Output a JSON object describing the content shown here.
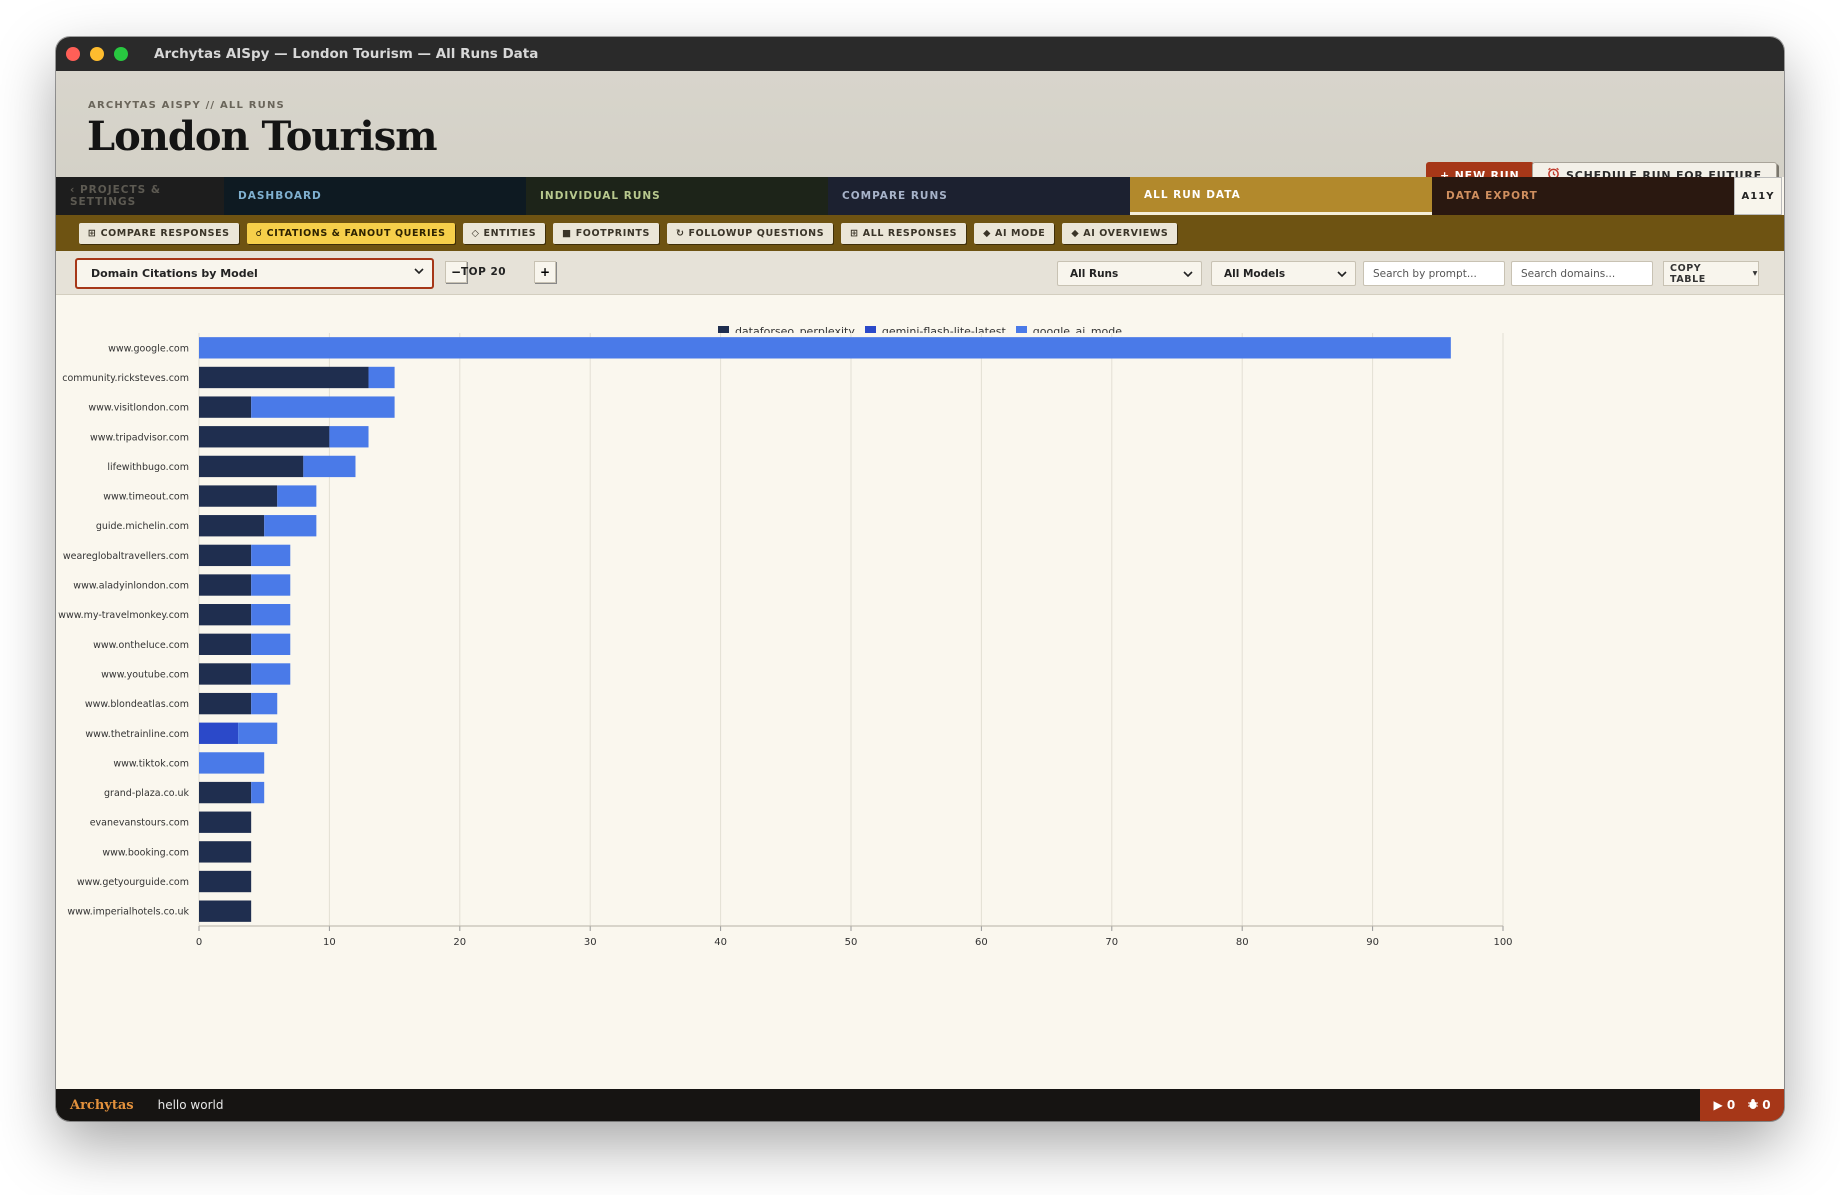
{
  "window": {
    "title": "Archytas AISpy — London Tourism — All Runs Data"
  },
  "header": {
    "breadcrumb": "ARCHYTAS AISPY // ALL RUNS",
    "title": "London Tourism",
    "new_run_label": "+ NEW RUN",
    "schedule_label": "SCHEDULE RUN FOR FUTURE",
    "schedule_icon": "alarm-clock-icon"
  },
  "tabs": [
    {
      "label": "‹ PROJECTS & SETTINGS"
    },
    {
      "label": "DASHBOARD"
    },
    {
      "label": "INDIVIDUAL RUNS"
    },
    {
      "label": "COMPARE RUNS"
    },
    {
      "label": "ALL RUN DATA"
    },
    {
      "label": "DATA EXPORT"
    },
    {
      "label": "A11Y"
    }
  ],
  "subtabs": [
    {
      "icon": "⊞",
      "label": "COMPARE RESPONSES"
    },
    {
      "icon": "☌",
      "label": "CITATIONS & FANOUT QUERIES"
    },
    {
      "icon": "◇",
      "label": "ENTITIES"
    },
    {
      "icon": "■",
      "label": "FOOTPRINTS"
    },
    {
      "icon": "↻",
      "label": "FOLLOWUP QUESTIONS"
    },
    {
      "icon": "⊞",
      "label": "ALL RESPONSES"
    },
    {
      "icon": "◆",
      "label": "AI MODE"
    },
    {
      "icon": "◆",
      "label": "AI OVERVIEWS"
    }
  ],
  "controls": {
    "view_select": "Domain Citations by Model",
    "minus": "−",
    "top_label": "TOP 20",
    "plus": "+",
    "runs_select": "All Runs",
    "models_select": "All Models",
    "prompt_search_placeholder": "Search by prompt...",
    "domain_search_placeholder": "Search domains...",
    "copy_label": "COPY TABLE",
    "copy_caret": "▾"
  },
  "chart_data": {
    "type": "bar",
    "orientation": "horizontal",
    "stacked": true,
    "categories": [
      "www.google.com",
      "community.ricksteves.com",
      "www.visitlondon.com",
      "www.tripadvisor.com",
      "lifewithbugo.com",
      "www.timeout.com",
      "guide.michelin.com",
      "weareglobaltravellers.com",
      "www.aladyinlondon.com",
      "www.my-travelmonkey.com",
      "www.ontheluce.com",
      "www.youtube.com",
      "www.blondeatlas.com",
      "www.thetrainline.com",
      "www.tiktok.com",
      "grand-plaza.co.uk",
      "evanevanstours.com",
      "www.booking.com",
      "www.getyourguide.com",
      "www.imperialhotels.co.uk"
    ],
    "series": [
      {
        "name": "dataforseo_perplexity",
        "color": "#1f2e4f",
        "values": [
          0,
          13,
          4,
          10,
          8,
          6,
          5,
          4,
          4,
          4,
          4,
          4,
          4,
          0,
          0,
          4,
          4,
          4,
          4,
          4
        ]
      },
      {
        "name": "gemini-flash-lite-latest",
        "color": "#2b49c9",
        "values": [
          0,
          0,
          0,
          0,
          0,
          0,
          0,
          0,
          0,
          0,
          0,
          0,
          0,
          3,
          0,
          0,
          0,
          0,
          0,
          0
        ]
      },
      {
        "name": "google_ai_mode",
        "color": "#4a7ae8",
        "values": [
          96,
          2,
          11,
          3,
          4,
          3,
          4,
          3,
          3,
          3,
          3,
          3,
          2,
          3,
          5,
          1,
          0,
          0,
          0,
          0
        ]
      }
    ],
    "xlim": [
      0,
      100
    ],
    "xticks": [
      0,
      10,
      20,
      30,
      40,
      50,
      60,
      70,
      80,
      90,
      100
    ],
    "grid": true,
    "legend_position": "top-center"
  },
  "statusbar": {
    "brand": "Archytas",
    "message": "hello world",
    "runs_count": "▶ 0",
    "bug_count": "0",
    "bug_icon": "bug-icon"
  }
}
